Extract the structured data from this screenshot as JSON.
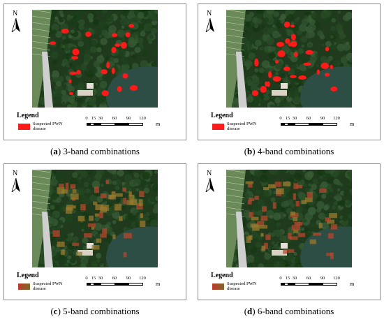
{
  "panels": [
    {
      "caption_letter": "a",
      "caption_paren_open": "(",
      "caption_paren_close": ")",
      "caption_text": " 3-band combinations",
      "north_label": "N",
      "legend_title": "Legend",
      "legend_label": "Suspected PWN disease",
      "legend_color": "#ff1a1a",
      "scale_ticks": [
        "0",
        "15",
        "30",
        "60",
        "90",
        "120"
      ],
      "scale_unit": "m",
      "marker_style": "red"
    },
    {
      "caption_letter": "b",
      "caption_paren_open": "(",
      "caption_paren_close": ")",
      "caption_text": " 4-band combinations",
      "north_label": "N",
      "legend_title": "Legend",
      "legend_label": "Suspected PWN disease",
      "legend_color": "#ff1a1a",
      "scale_ticks": [
        "0",
        "15",
        "30",
        "60",
        "90",
        "120"
      ],
      "scale_unit": "m",
      "marker_style": "red"
    },
    {
      "caption_letter": "c",
      "caption_paren_open": "(",
      "caption_paren_close": ")",
      "caption_text": " 5-band combinations",
      "north_label": "N",
      "legend_title": "Legend",
      "legend_label": "Suspected PWN disease",
      "legend_color": "#8a5a2a",
      "scale_ticks": [
        "0",
        "15",
        "30",
        "60",
        "90",
        "120"
      ],
      "scale_unit": "m",
      "marker_style": "brown"
    },
    {
      "caption_letter": "d",
      "caption_paren_open": "(",
      "caption_paren_close": ")",
      "caption_text": " 6-band combinations",
      "north_label": "N",
      "legend_title": "Legend",
      "legend_label": "Suspected PWN disease",
      "legend_color": "#8a5a2a",
      "scale_ticks": [
        "0",
        "15",
        "30",
        "60",
        "90",
        "120"
      ],
      "scale_unit": "m",
      "marker_style": "brown"
    }
  ]
}
